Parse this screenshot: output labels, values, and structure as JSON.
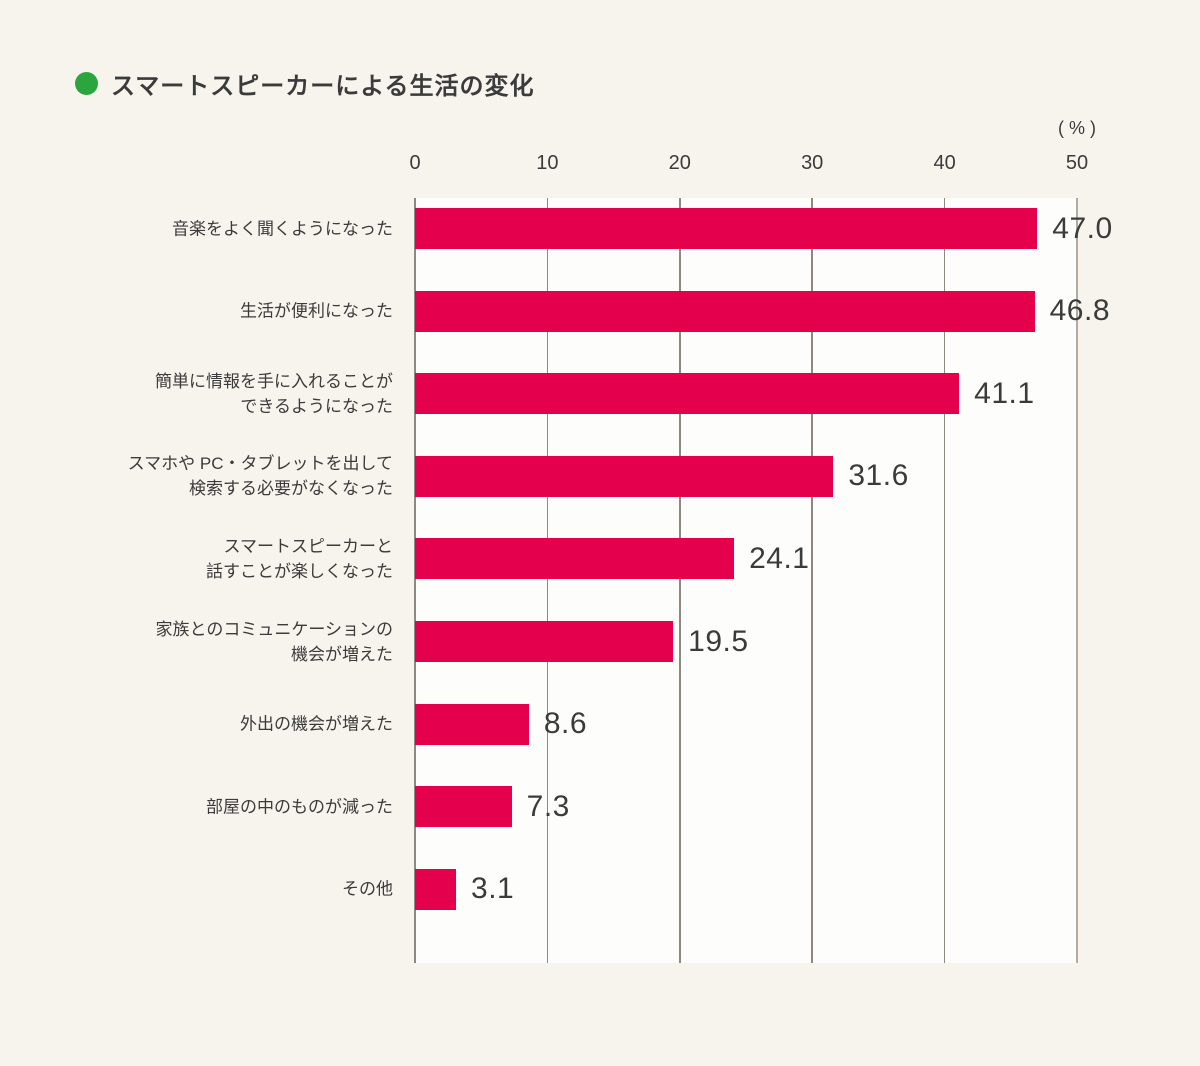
{
  "title": {
    "text": "スマートスピーカーによる生活の変化"
  },
  "colors": {
    "page_bg": "#F7F4EE",
    "plot_bg": "#FDFDFB",
    "bullet": "#2BA63E",
    "bar": "#E5004E",
    "text": "#3B3B3B",
    "grid": "#8E8880",
    "grid_last": "#B2ABA4"
  },
  "chart_data": {
    "type": "bar",
    "orientation": "horizontal",
    "title": "スマートスピーカーによる生活の変化",
    "unit_label": "( % )",
    "xlim": [
      0,
      50
    ],
    "ticks": [
      0,
      10,
      20,
      30,
      40,
      50
    ],
    "grid": true,
    "legend": "none",
    "categories": [
      "音楽をよく聞くようになった",
      "生活が便利になった",
      "簡単に情報を手に入れることが できるようになった",
      "スマホや PC・タブレットを出して 検索する必要がなくなった",
      "スマートスピーカーと 話すことが楽しくなった",
      "家族とのコミュニケーションの 機会が増えた",
      "外出の機会が増えた",
      "部屋の中のものが減った",
      "その他"
    ],
    "category_lines": [
      [
        "音楽をよく聞くようになった"
      ],
      [
        "生活が便利になった"
      ],
      [
        "簡単に情報を手に入れることが",
        "できるようになった"
      ],
      [
        "スマホや PC・タブレットを出して",
        "検索する必要がなくなった"
      ],
      [
        "スマートスピーカーと",
        "話すことが楽しくなった"
      ],
      [
        "家族とのコミュニケーションの",
        "機会が増えた"
      ],
      [
        "外出の機会が増えた"
      ],
      [
        "部屋の中のものが減った"
      ],
      [
        "その他"
      ]
    ],
    "values": [
      47.0,
      46.8,
      41.1,
      31.6,
      24.1,
      19.5,
      8.6,
      7.3,
      3.1
    ],
    "value_labels": [
      "47.0",
      "46.8",
      "41.1",
      "31.6",
      "24.1",
      "19.5",
      "8.6",
      "7.3",
      "3.1"
    ]
  }
}
